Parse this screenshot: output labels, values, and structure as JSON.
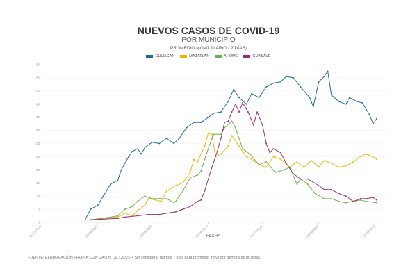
{
  "chart_data": {
    "type": "line",
    "title": "NUEVOS CASOS DE COVID-19",
    "subtitle": "POR MUNICIPIO",
    "note": "PROMEDIO MÓVIL DIARIO ( 7 DÍAS)",
    "xlabel": "FECHA",
    "ylabel": "",
    "ylim": [
      0,
      60
    ],
    "yticks": [
      0,
      5,
      10,
      15,
      20,
      25,
      30,
      35,
      40,
      45,
      50,
      55,
      60
    ],
    "x_unit": "days since 01/03/2020",
    "xlim": [
      0,
      190
    ],
    "xticks": [
      {
        "day": 0,
        "label": "01/03/2020"
      },
      {
        "day": 31,
        "label": "01/04/2020"
      },
      {
        "day": 61,
        "label": "01/05/2020"
      },
      {
        "day": 92,
        "label": "01/06/2020"
      },
      {
        "day": 122,
        "label": "01/07/2020"
      },
      {
        "day": 153,
        "label": "01/08/2020"
      },
      {
        "day": 184,
        "label": "01/09/2020"
      }
    ],
    "grid": true,
    "legend_position": "top-center",
    "series": [
      {
        "name": "CULIACÁN",
        "color": "#1f6a96",
        "points": [
          [
            24,
            1
          ],
          [
            27,
            5
          ],
          [
            31,
            6.5
          ],
          [
            34,
            10
          ],
          [
            38,
            14.5
          ],
          [
            42,
            16
          ],
          [
            44,
            20
          ],
          [
            48,
            25
          ],
          [
            50,
            27
          ],
          [
            53,
            28
          ],
          [
            55,
            26
          ],
          [
            57,
            28.5
          ],
          [
            61,
            30.5
          ],
          [
            65,
            30
          ],
          [
            69,
            32
          ],
          [
            73,
            30
          ],
          [
            76,
            32
          ],
          [
            80,
            36
          ],
          [
            84,
            38
          ],
          [
            88,
            38
          ],
          [
            92,
            40
          ],
          [
            95,
            41.5
          ],
          [
            99,
            42
          ],
          [
            103,
            46
          ],
          [
            106,
            50.5
          ],
          [
            109,
            47.5
          ],
          [
            113,
            45
          ],
          [
            116,
            49
          ],
          [
            120,
            47.5
          ],
          [
            124,
            51.5
          ],
          [
            128,
            53
          ],
          [
            132,
            53.5
          ],
          [
            135,
            55.5
          ],
          [
            139,
            55
          ],
          [
            143,
            51.5
          ],
          [
            148,
            47.5
          ],
          [
            150,
            44
          ],
          [
            153,
            53.5
          ],
          [
            156,
            55.5
          ],
          [
            158,
            57.5
          ],
          [
            160,
            48.5
          ],
          [
            164,
            46
          ],
          [
            168,
            45
          ],
          [
            170,
            47.5
          ],
          [
            174,
            46
          ],
          [
            177,
            45.5
          ],
          [
            181,
            41
          ],
          [
            183,
            37.5
          ],
          [
            185,
            39.5
          ]
        ]
      },
      {
        "name": "MAZATLÁN",
        "color": "#f0b400",
        "points": [
          [
            27,
            1
          ],
          [
            42,
            2
          ],
          [
            46,
            3.5
          ],
          [
            50,
            2.5
          ],
          [
            53,
            4.5
          ],
          [
            57,
            6.5
          ],
          [
            59,
            9
          ],
          [
            63,
            8.5
          ],
          [
            66,
            8
          ],
          [
            69,
            12
          ],
          [
            74,
            14
          ],
          [
            78,
            15
          ],
          [
            82,
            19
          ],
          [
            84,
            24
          ],
          [
            86,
            23
          ],
          [
            90,
            29
          ],
          [
            92,
            34
          ],
          [
            94,
            33.5
          ],
          [
            96,
            25
          ],
          [
            99,
            26
          ],
          [
            103,
            29
          ],
          [
            105,
            33
          ],
          [
            109,
            29
          ],
          [
            113,
            25
          ],
          [
            116,
            24
          ],
          [
            120,
            22
          ],
          [
            124,
            21
          ],
          [
            128,
            25
          ],
          [
            132,
            24
          ],
          [
            137,
            21
          ],
          [
            141,
            23
          ],
          [
            145,
            21
          ],
          [
            149,
            23.5
          ],
          [
            153,
            21
          ],
          [
            156,
            23.5
          ],
          [
            160,
            22.5
          ],
          [
            164,
            21
          ],
          [
            168,
            21.5
          ],
          [
            172,
            23
          ],
          [
            176,
            25
          ],
          [
            179,
            26
          ],
          [
            183,
            25
          ],
          [
            185,
            24
          ]
        ]
      },
      {
        "name": "AHOME",
        "color": "#6ab04c",
        "points": [
          [
            27,
            1
          ],
          [
            38,
            2
          ],
          [
            42,
            2.5
          ],
          [
            46,
            5
          ],
          [
            50,
            6
          ],
          [
            53,
            8
          ],
          [
            57,
            10
          ],
          [
            61,
            9
          ],
          [
            65,
            9
          ],
          [
            69,
            9
          ],
          [
            73,
            7.5
          ],
          [
            74,
            8
          ],
          [
            78,
            12
          ],
          [
            82,
            17
          ],
          [
            86,
            18
          ],
          [
            88,
            19.5
          ],
          [
            90,
            24
          ],
          [
            94,
            32
          ],
          [
            95,
            33.5
          ],
          [
            99,
            33.5
          ],
          [
            101,
            36
          ],
          [
            105,
            38.5
          ],
          [
            107,
            36
          ],
          [
            111,
            28
          ],
          [
            115,
            26
          ],
          [
            120,
            22
          ],
          [
            124,
            23
          ],
          [
            129,
            19
          ],
          [
            134,
            20
          ],
          [
            137,
            21
          ],
          [
            141,
            14.5
          ],
          [
            143,
            16.5
          ],
          [
            147,
            14.5
          ],
          [
            151,
            11
          ],
          [
            156,
            9
          ],
          [
            160,
            9
          ],
          [
            164,
            8
          ],
          [
            168,
            7.5
          ],
          [
            172,
            8
          ],
          [
            176,
            8.5
          ],
          [
            179,
            8
          ],
          [
            185,
            7.5
          ]
        ]
      },
      {
        "name": "GUASAVE",
        "color": "#962d6e",
        "points": [
          [
            27,
            1
          ],
          [
            42,
            1.5
          ],
          [
            46,
            2
          ],
          [
            53,
            2.5
          ],
          [
            59,
            3
          ],
          [
            65,
            3
          ],
          [
            69,
            3.5
          ],
          [
            74,
            4
          ],
          [
            78,
            5
          ],
          [
            82,
            6
          ],
          [
            86,
            8
          ],
          [
            88,
            8.5
          ],
          [
            90,
            12
          ],
          [
            94,
            21
          ],
          [
            97,
            27
          ],
          [
            99,
            32
          ],
          [
            101,
            38
          ],
          [
            103,
            38.5
          ],
          [
            105,
            42
          ],
          [
            107,
            45
          ],
          [
            109,
            42
          ],
          [
            111,
            45.5
          ],
          [
            114,
            42
          ],
          [
            117,
            37
          ],
          [
            119,
            42
          ],
          [
            122,
            37
          ],
          [
            124,
            30
          ],
          [
            126,
            26.5
          ],
          [
            128,
            28
          ],
          [
            132,
            26.5
          ],
          [
            135,
            22.5
          ],
          [
            139,
            18.5
          ],
          [
            143,
            16.5
          ],
          [
            147,
            16.5
          ],
          [
            153,
            14
          ],
          [
            156,
            12.5
          ],
          [
            160,
            12.5
          ],
          [
            164,
            11
          ],
          [
            168,
            10
          ],
          [
            172,
            8
          ],
          [
            176,
            9
          ],
          [
            179,
            9
          ],
          [
            183,
            9.5
          ],
          [
            185,
            8.5
          ]
        ]
      }
    ]
  },
  "footer": "FUENTE: ELABORACIÓN PROPIA CON DATOS DE LA SS- • Sin considerar últimos 7 días para promedio móvil por demora de pruebas."
}
